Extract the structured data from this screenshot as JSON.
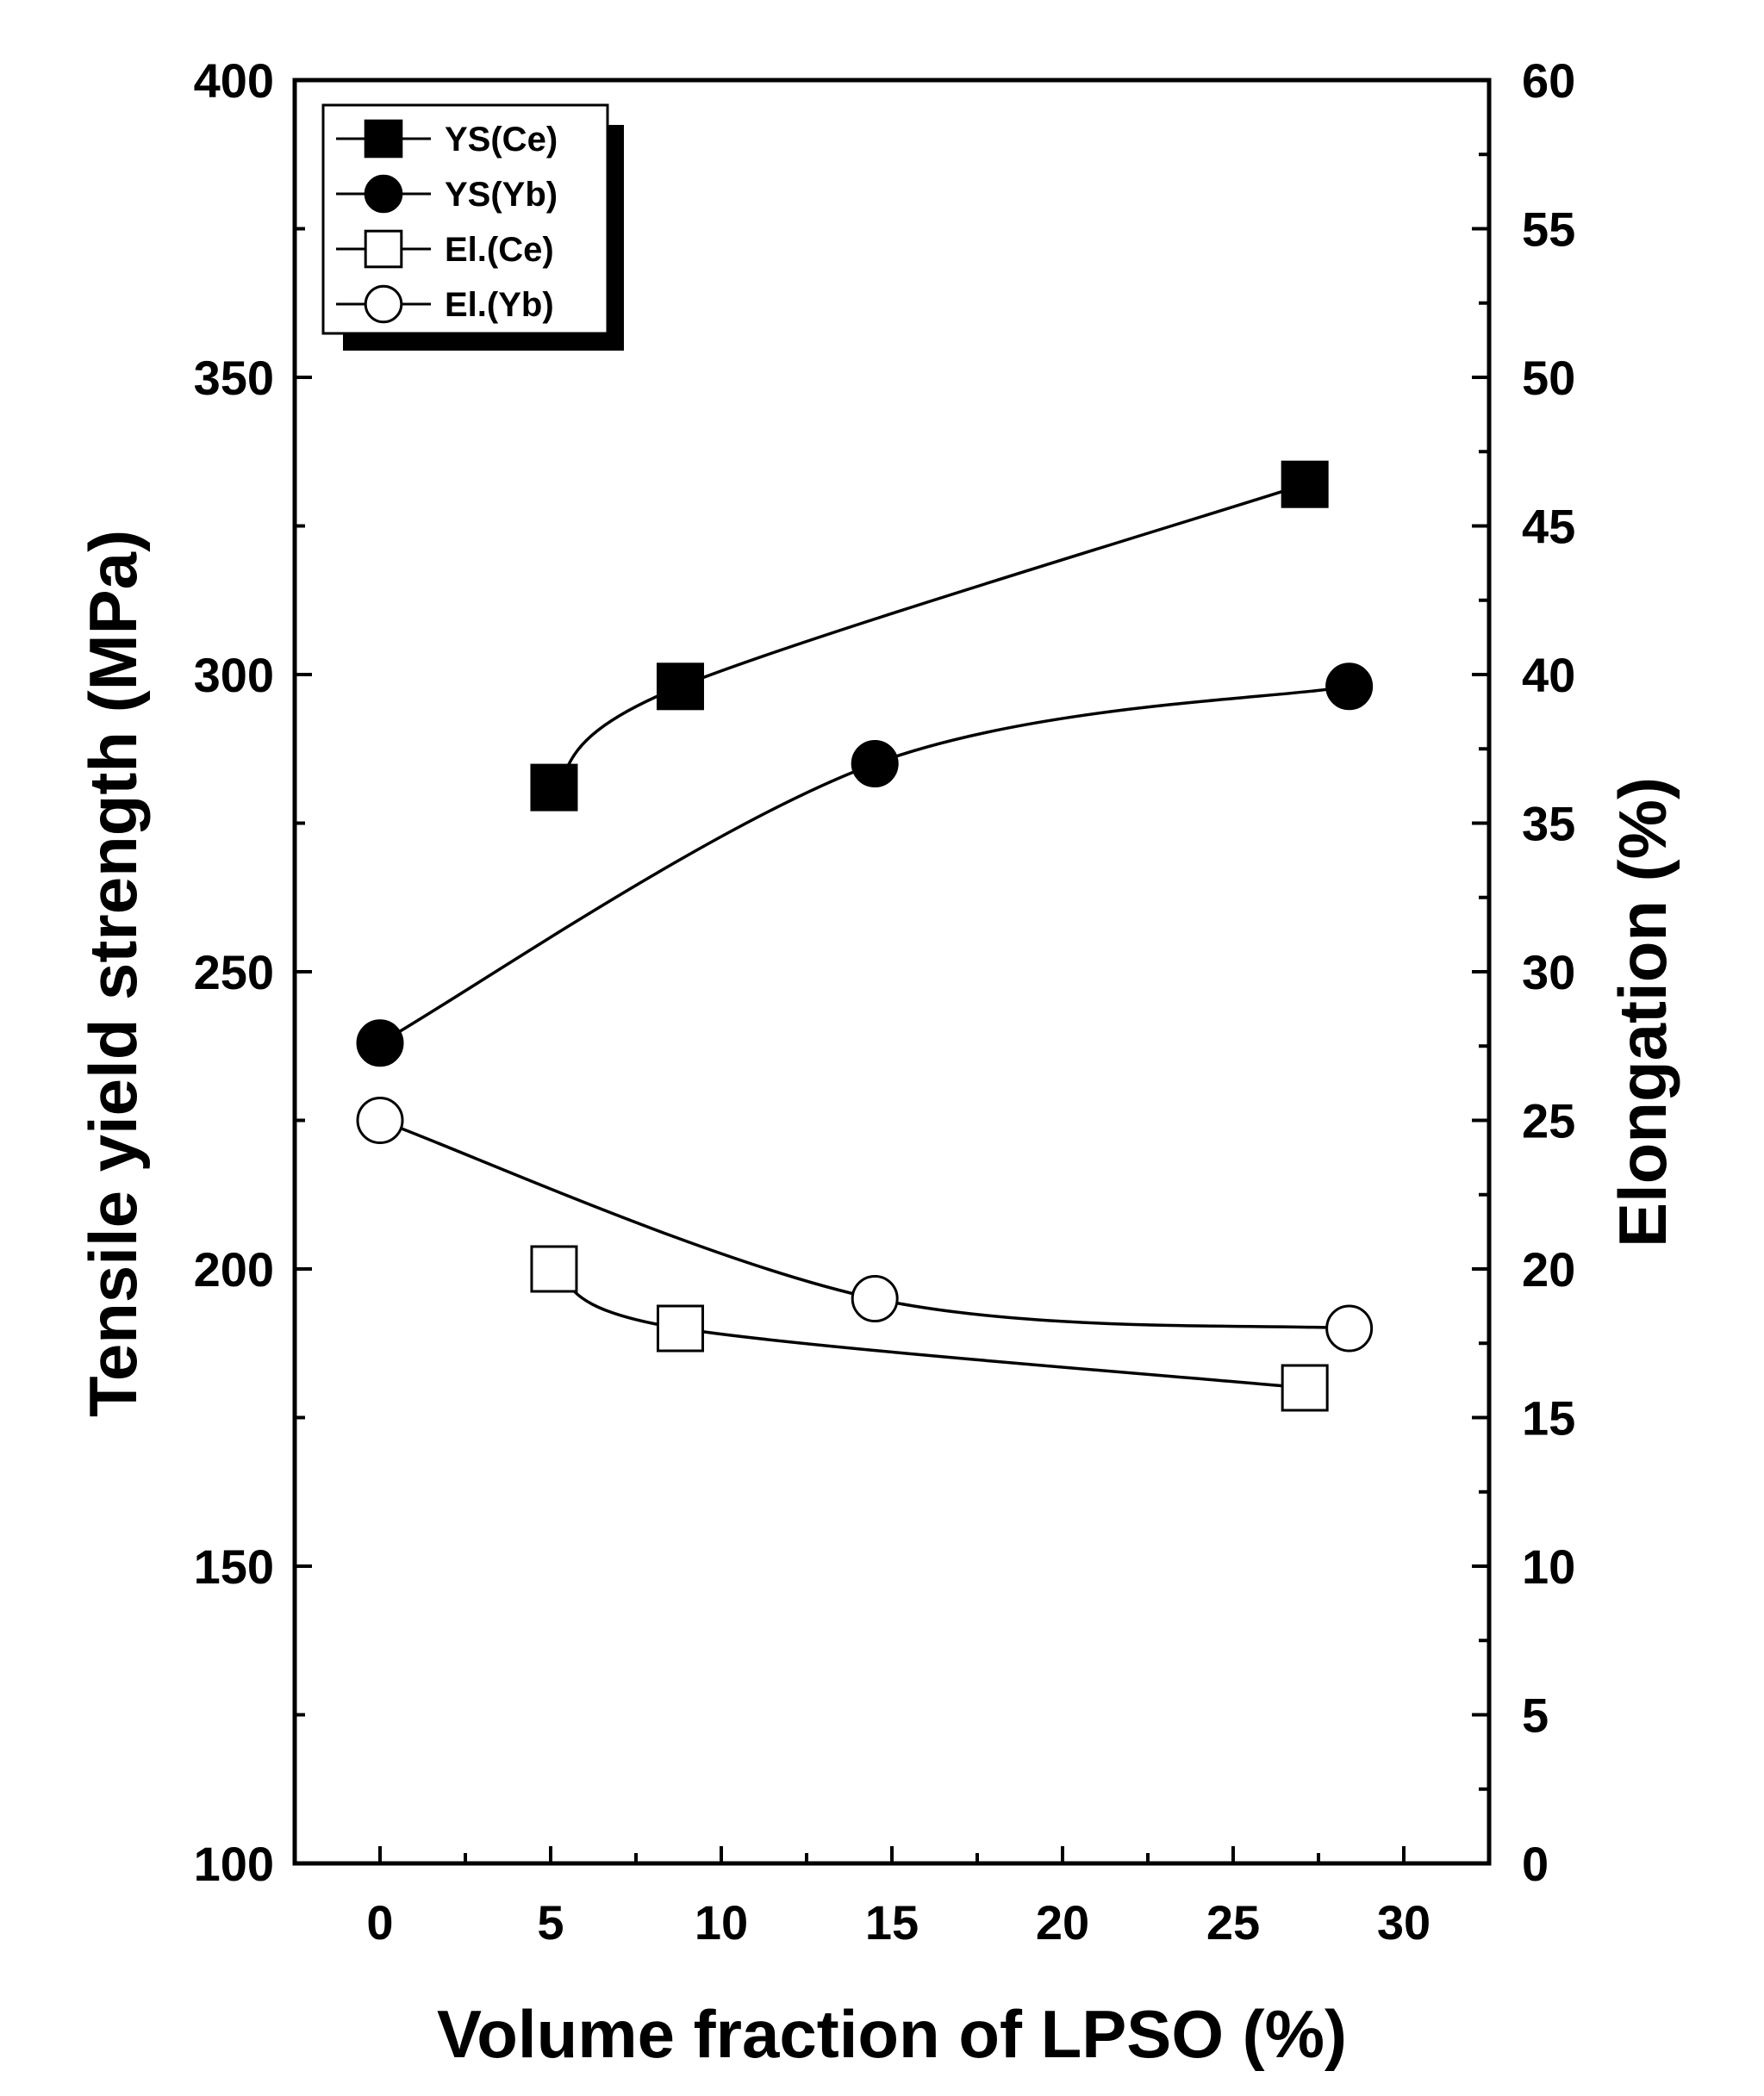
{
  "chart_data": {
    "type": "line",
    "xlabel": "Volume fraction of LPSO (%)",
    "ylabel_left": "Tensile yield strength (MPa)",
    "ylabel_right": "Elongation (%)",
    "xlim": [
      -2.5,
      32.5
    ],
    "ylim_left": [
      100,
      400
    ],
    "ylim_right": [
      0,
      60
    ],
    "x_ticks": [
      0,
      5,
      10,
      15,
      20,
      25,
      30
    ],
    "x_tick_labels": [
      "0",
      "5",
      "10",
      "15",
      "20",
      "25",
      "30"
    ],
    "y_left_ticks": [
      100,
      150,
      200,
      250,
      300,
      350,
      400
    ],
    "y_left_tick_labels": [
      "100",
      "150",
      "200",
      "250",
      "300",
      "350",
      "400"
    ],
    "y_right_ticks": [
      0,
      5,
      10,
      15,
      20,
      25,
      30,
      35,
      40,
      45,
      50,
      55,
      60
    ],
    "y_right_tick_labels": [
      "0",
      "5",
      "10",
      "15",
      "20",
      "25",
      "30",
      "35",
      "40",
      "45",
      "50",
      "55",
      "60"
    ],
    "grid": false,
    "legend_position": "top-left",
    "series": [
      {
        "name": "YS(Ce)",
        "axis": "left",
        "marker": "square",
        "filled": true,
        "x": [
          5.1,
          8.8,
          27.1
        ],
        "y": [
          281,
          298,
          332
        ]
      },
      {
        "name": "YS(Yb)",
        "axis": "left",
        "marker": "circle",
        "filled": true,
        "x": [
          0,
          14.5,
          28.4
        ],
        "y": [
          238,
          285,
          298
        ]
      },
      {
        "name": "El.(Ce)",
        "axis": "right",
        "marker": "square",
        "filled": false,
        "x": [
          5.1,
          8.8,
          27.1
        ],
        "y": [
          20,
          18,
          16
        ]
      },
      {
        "name": "El.(Yb)",
        "axis": "right",
        "marker": "circle",
        "filled": false,
        "x": [
          0,
          14.5,
          28.4
        ],
        "y": [
          25,
          19,
          18
        ]
      }
    ]
  }
}
